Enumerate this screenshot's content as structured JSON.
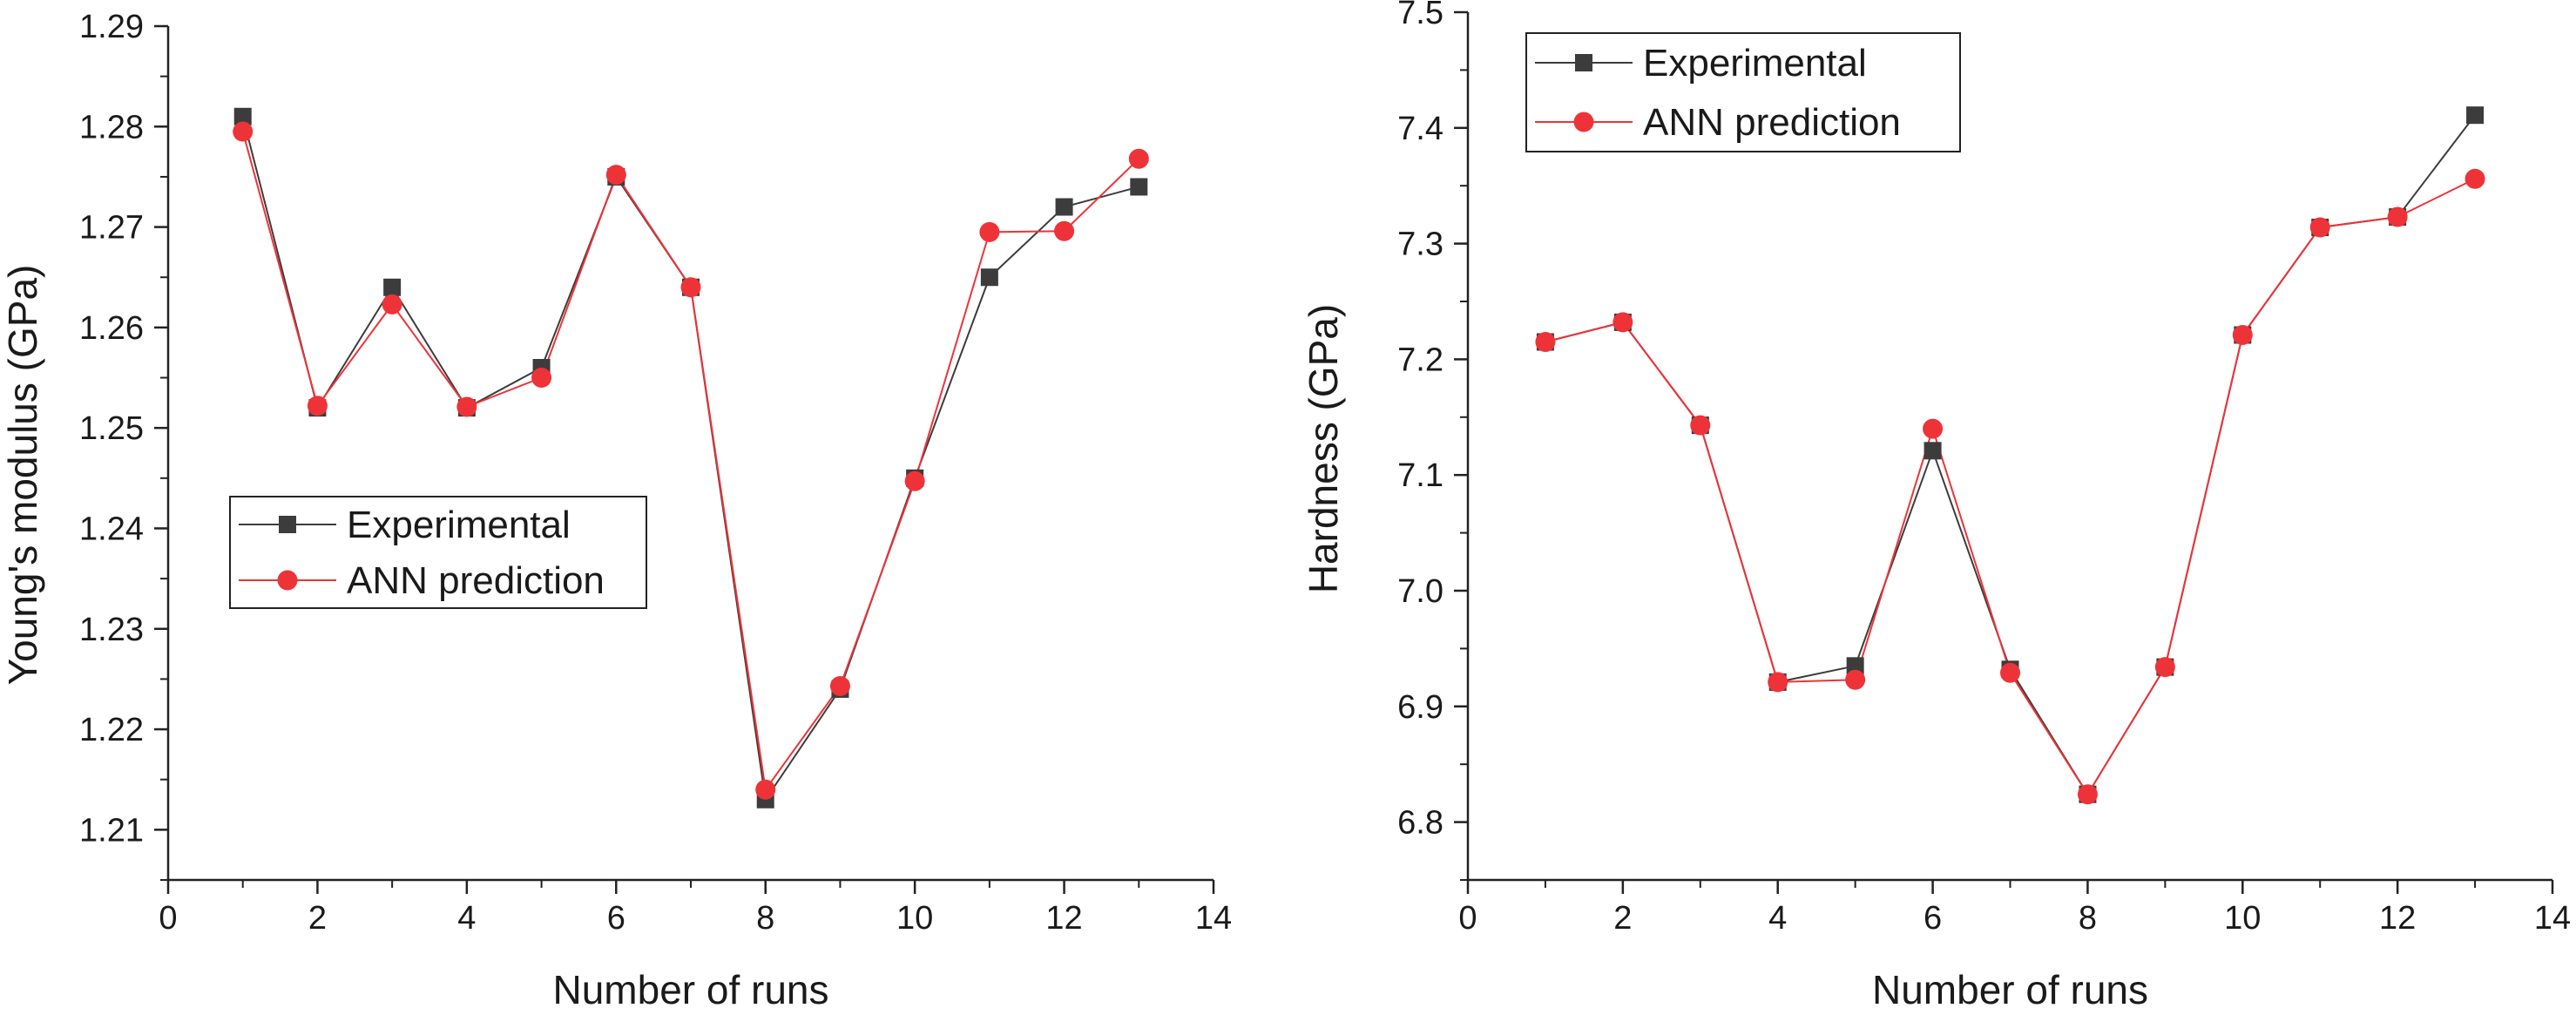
{
  "chart_data": [
    {
      "type": "line",
      "xlabel": "Number of runs",
      "ylabel": "Young's modulus (GPa)",
      "xlim": [
        0,
        14
      ],
      "ylim": [
        1.205,
        1.29
      ],
      "x_ticks": [
        0,
        2,
        4,
        6,
        8,
        10,
        12,
        14
      ],
      "x_tick_labels": [
        "0",
        "2",
        "4",
        "6",
        "8",
        "10",
        "12",
        "14"
      ],
      "y_ticks": [
        1.21,
        1.22,
        1.23,
        1.24,
        1.25,
        1.26,
        1.27,
        1.28,
        1.29
      ],
      "y_tick_labels": [
        "1.21",
        "1.22",
        "1.23",
        "1.24",
        "1.25",
        "1.26",
        "1.27",
        "1.28",
        "1.29"
      ],
      "legend_placement": "center-left",
      "x": [
        1,
        2,
        3,
        4,
        5,
        6,
        7,
        8,
        9,
        10,
        11,
        12,
        13
      ],
      "series": [
        {
          "name": "Experimental",
          "marker": "square",
          "color": "#3c3c3c",
          "values": [
            1.281,
            1.252,
            1.264,
            1.252,
            1.256,
            1.275,
            1.264,
            1.213,
            1.224,
            1.245,
            1.265,
            1.272,
            1.274
          ]
        },
        {
          "name": "ANN prediction",
          "marker": "circle",
          "color": "#ee3338",
          "values": [
            1.2795,
            1.2522,
            1.2623,
            1.2521,
            1.255,
            1.2752,
            1.264,
            1.214,
            1.2243,
            1.2447,
            1.2695,
            1.2696,
            1.2768
          ]
        }
      ]
    },
    {
      "type": "line",
      "xlabel": "Number of runs",
      "ylabel": "Hardness (GPa)",
      "xlim": [
        0,
        14
      ],
      "ylim": [
        6.75,
        7.5
      ],
      "x_ticks": [
        0,
        2,
        4,
        6,
        8,
        10,
        12,
        14
      ],
      "x_tick_labels": [
        "0",
        "2",
        "4",
        "6",
        "8",
        "10",
        "12",
        "14"
      ],
      "y_ticks": [
        6.8,
        6.9,
        7.0,
        7.1,
        7.2,
        7.3,
        7.4,
        7.5
      ],
      "y_tick_labels": [
        "6.8",
        "6.9",
        "7.0",
        "7.1",
        "7.2",
        "7.3",
        "7.4",
        "7.5"
      ],
      "legend_placement": "top-left",
      "x": [
        1,
        2,
        3,
        4,
        5,
        6,
        7,
        8,
        9,
        10,
        11,
        12,
        13
      ],
      "series": [
        {
          "name": "Experimental",
          "marker": "square",
          "color": "#3c3c3c",
          "values": [
            7.215,
            7.232,
            7.143,
            6.921,
            6.935,
            7.121,
            6.932,
            6.824,
            6.934,
            7.221,
            7.314,
            7.323,
            7.411
          ]
        },
        {
          "name": "ANN prediction",
          "marker": "circle",
          "color": "#ee3338",
          "values": [
            7.215,
            7.232,
            7.143,
            6.921,
            6.923,
            7.14,
            6.929,
            6.824,
            6.934,
            7.221,
            7.314,
            7.323,
            7.356
          ]
        }
      ]
    }
  ]
}
